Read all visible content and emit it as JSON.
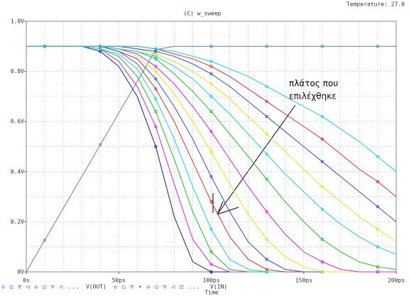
{
  "chart_data": {
    "type": "line",
    "title": "(C) w_sweep",
    "temperature": "Temperature: 27.0",
    "xlabel": "Time",
    "annotation": [
      "πλάτος που",
      "επιλέχθηκε"
    ],
    "x": [
      0,
      10,
      20,
      30,
      40,
      50,
      60,
      70,
      80,
      90,
      100,
      110,
      120,
      130,
      140,
      150,
      160,
      170,
      180,
      190,
      200
    ],
    "xlim": [
      0,
      200
    ],
    "ylim": [
      0,
      1.0
    ],
    "xticks": [
      {
        "value": 0,
        "label": "0s"
      },
      {
        "value": 50,
        "label": "50ps"
      },
      {
        "value": 100,
        "label": "100ps"
      },
      {
        "value": 150,
        "label": "150ps"
      },
      {
        "value": 200,
        "label": "200ps"
      }
    ],
    "yticks": [
      {
        "value": 0,
        "label": "0V"
      },
      {
        "value": 0.2,
        "label": "0.2V"
      },
      {
        "value": 0.4,
        "label": "0.4V"
      },
      {
        "value": 0.6,
        "label": "0.6V"
      },
      {
        "value": 0.8,
        "label": "0.8V"
      },
      {
        "value": 1.0,
        "label": "1.0V"
      }
    ],
    "xgrid": [
      0,
      10,
      20,
      30,
      40,
      50,
      60,
      70,
      80,
      90,
      100,
      110,
      120,
      130,
      140,
      150,
      160,
      170,
      180,
      190,
      200
    ],
    "ygrid": [
      0,
      0.1,
      0.2,
      0.3,
      0.4,
      0.5,
      0.6,
      0.7,
      0.8,
      0.9,
      1.0
    ],
    "grid": true,
    "series": [
      {
        "name": "V(IN)",
        "color": "#5a86b0",
        "values": [
          0,
          0.127,
          0.254,
          0.38,
          0.507,
          0.634,
          0.76,
          0.887,
          0.9,
          0.9,
          0.9,
          0.9,
          0.9,
          0.9,
          0.9,
          0.9,
          0.9,
          0.9,
          0.9,
          0.9,
          0.9
        ]
      },
      {
        "name": "V(OUT)",
        "curves": [
          {
            "color": "#1a1a8c",
            "values": [
              0.9,
              0.9,
              0.9,
              0.9,
              0.88,
              0.82,
              0.7,
              0.5,
              0.22,
              0.04,
              0,
              0,
              0,
              0,
              0,
              0,
              0,
              0,
              0,
              0,
              0
            ]
          },
          {
            "color": "#e020e0",
            "values": [
              0.9,
              0.9,
              0.9,
              0.9,
              0.89,
              0.84,
              0.74,
              0.58,
              0.35,
              0.13,
              0.03,
              0,
              0,
              0,
              0,
              0,
              0,
              0,
              0,
              0,
              0
            ]
          },
          {
            "color": "#20c020",
            "values": [
              0.9,
              0.9,
              0.9,
              0.9,
              0.89,
              0.86,
              0.78,
              0.64,
              0.45,
              0.24,
              0.08,
              0.01,
              0,
              0,
              0,
              0,
              0,
              0,
              0,
              0,
              0
            ]
          },
          {
            "color": "#20d0e0",
            "values": [
              0.9,
              0.9,
              0.9,
              0.9,
              0.89,
              0.87,
              0.81,
              0.69,
              0.53,
              0.34,
              0.17,
              0.05,
              0.01,
              0,
              0,
              0,
              0,
              0,
              0,
              0,
              0
            ]
          },
          {
            "color": "#e03030",
            "values": [
              0.9,
              0.9,
              0.9,
              0.9,
              0.9,
              0.88,
              0.83,
              0.73,
              0.6,
              0.44,
              0.28,
              0.14,
              0.05,
              0.01,
              0,
              0,
              0,
              0,
              0,
              0,
              0
            ]
          },
          {
            "color": "#3050d0",
            "values": [
              0.9,
              0.9,
              0.9,
              0.9,
              0.9,
              0.88,
              0.85,
              0.77,
              0.66,
              0.53,
              0.38,
              0.24,
              0.12,
              0.05,
              0.01,
              0,
              0,
              0,
              0,
              0,
              0
            ]
          },
          {
            "color": "#e8e020",
            "values": [
              0.9,
              0.9,
              0.9,
              0.9,
              0.9,
              0.89,
              0.86,
              0.8,
              0.71,
              0.6,
              0.48,
              0.35,
              0.23,
              0.13,
              0.06,
              0.02,
              0,
              0,
              0,
              0,
              0
            ]
          },
          {
            "color": "#e020e0",
            "values": [
              0.9,
              0.9,
              0.9,
              0.9,
              0.9,
              0.89,
              0.87,
              0.82,
              0.75,
              0.66,
              0.56,
              0.45,
              0.34,
              0.24,
              0.15,
              0.08,
              0.04,
              0.01,
              0,
              0,
              0
            ]
          },
          {
            "color": "#20c020",
            "values": [
              0.9,
              0.9,
              0.9,
              0.9,
              0.9,
              0.89,
              0.88,
              0.85,
              0.79,
              0.72,
              0.64,
              0.55,
              0.46,
              0.37,
              0.28,
              0.2,
              0.13,
              0.08,
              0.04,
              0.02,
              0.01
            ]
          },
          {
            "color": "#20d0e0",
            "values": [
              0.9,
              0.9,
              0.9,
              0.9,
              0.9,
              0.89,
              0.88,
              0.86,
              0.82,
              0.77,
              0.7,
              0.63,
              0.55,
              0.47,
              0.39,
              0.32,
              0.25,
              0.19,
              0.14,
              0.1,
              0.07
            ]
          },
          {
            "color": "#e8e020",
            "values": [
              0.9,
              0.9,
              0.9,
              0.9,
              0.9,
              0.9,
              0.89,
              0.87,
              0.84,
              0.8,
              0.75,
              0.69,
              0.62,
              0.55,
              0.48,
              0.41,
              0.34,
              0.28,
              0.22,
              0.17,
              0.12
            ]
          },
          {
            "color": "#3050d0",
            "values": [
              0.9,
              0.9,
              0.9,
              0.9,
              0.9,
              0.9,
              0.89,
              0.88,
              0.86,
              0.83,
              0.79,
              0.74,
              0.68,
              0.62,
              0.56,
              0.5,
              0.44,
              0.38,
              0.32,
              0.26,
              0.2
            ]
          },
          {
            "color": "#e03030",
            "values": [
              0.9,
              0.9,
              0.9,
              0.9,
              0.9,
              0.9,
              0.9,
              0.89,
              0.87,
              0.85,
              0.82,
              0.78,
              0.73,
              0.68,
              0.63,
              0.58,
              0.53,
              0.47,
              0.41,
              0.36,
              0.3
            ]
          },
          {
            "color": "#20d0e0",
            "values": [
              0.9,
              0.9,
              0.9,
              0.9,
              0.9,
              0.9,
              0.9,
              0.89,
              0.88,
              0.86,
              0.84,
              0.81,
              0.78,
              0.74,
              0.7,
              0.66,
              0.62,
              0.57,
              0.52,
              0.46,
              0.4
            ]
          }
        ]
      }
    ]
  }
}
